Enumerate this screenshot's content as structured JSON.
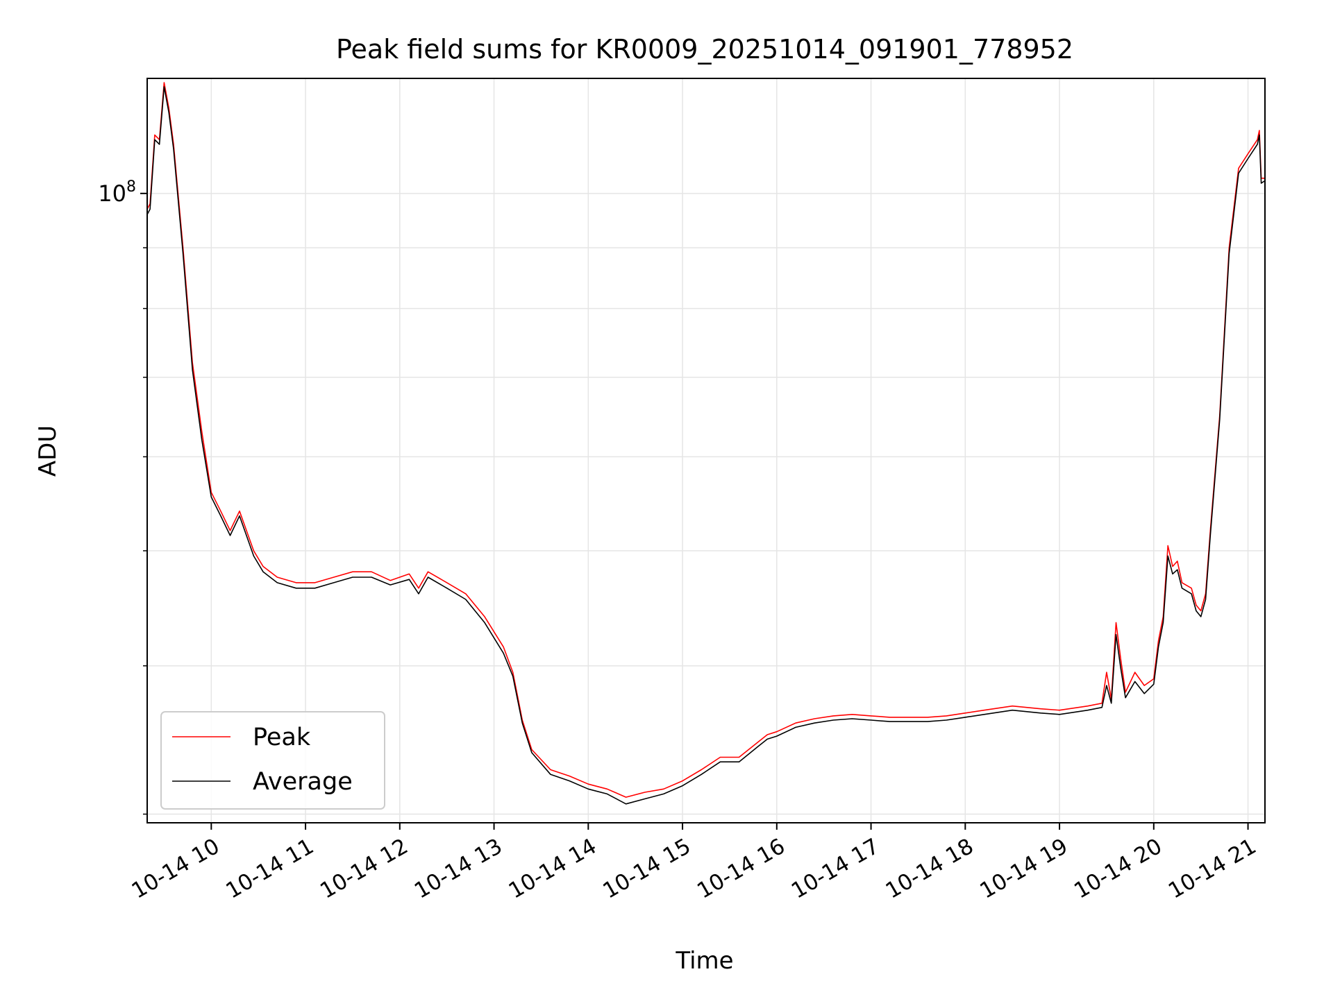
{
  "chart_data": {
    "type": "line",
    "title": "Peak field sums for KR0009_20251014_091901_778952",
    "xlabel": "Time",
    "ylabel": "ADU",
    "x_unit": "hours since 2025-10-14 00:00",
    "xlim": [
      9.32,
      21.18
    ],
    "ylim_log": [
      29500000,
      125000000
    ],
    "y_scale": "log",
    "grid": true,
    "legend_position": "lower-left",
    "x_ticks": [
      {
        "value": 10,
        "label": "10-14 10"
      },
      {
        "value": 11,
        "label": "10-14 11"
      },
      {
        "value": 12,
        "label": "10-14 12"
      },
      {
        "value": 13,
        "label": "10-14 13"
      },
      {
        "value": 14,
        "label": "10-14 14"
      },
      {
        "value": 15,
        "label": "10-14 15"
      },
      {
        "value": 16,
        "label": "10-14 16"
      },
      {
        "value": 17,
        "label": "10-14 17"
      },
      {
        "value": 18,
        "label": "10-14 18"
      },
      {
        "value": 19,
        "label": "10-14 19"
      },
      {
        "value": 20,
        "label": "10-14 20"
      },
      {
        "value": 21,
        "label": "10-14 21"
      }
    ],
    "y_major_ticks": [
      {
        "value": 100000000,
        "base": "10",
        "exp": "8"
      }
    ],
    "y_minor_ticks": [
      30000000,
      40000000,
      50000000,
      60000000,
      70000000,
      80000000,
      90000000
    ],
    "series": [
      {
        "name": "Peak",
        "color": "#ff0000",
        "x": [
          9.32,
          9.35,
          9.4,
          9.45,
          9.5,
          9.55,
          9.6,
          9.7,
          9.8,
          9.9,
          10.0,
          10.1,
          10.2,
          10.3,
          10.45,
          10.55,
          10.7,
          10.9,
          11.1,
          11.3,
          11.5,
          11.7,
          11.9,
          12.1,
          12.2,
          12.3,
          12.5,
          12.7,
          12.9,
          13.1,
          13.2,
          13.3,
          13.4,
          13.6,
          13.8,
          14.0,
          14.2,
          14.4,
          14.6,
          14.8,
          15.0,
          15.2,
          15.4,
          15.6,
          15.8,
          15.9,
          16.0,
          16.2,
          16.4,
          16.6,
          16.8,
          17.0,
          17.2,
          17.4,
          17.6,
          17.8,
          18.0,
          18.2,
          18.5,
          18.8,
          19.0,
          19.3,
          19.45,
          19.5,
          19.55,
          19.6,
          19.65,
          19.7,
          19.8,
          19.9,
          20.0,
          20.05,
          20.1,
          20.15,
          20.2,
          20.25,
          20.3,
          20.4,
          20.45,
          20.5,
          20.55,
          20.6,
          20.7,
          20.8,
          20.9,
          21.0,
          21.1,
          21.12,
          21.14,
          21.18
        ],
        "y": [
          97000000,
          98000000,
          112000000,
          111000000,
          124000000,
          118000000,
          110000000,
          90000000,
          72000000,
          63000000,
          56000000,
          54000000,
          52000000,
          54000000,
          50000000,
          48500000,
          47500000,
          47000000,
          47000000,
          47500000,
          48000000,
          48000000,
          47200000,
          47800000,
          46500000,
          48000000,
          47000000,
          46000000,
          44000000,
          41500000,
          39500000,
          36000000,
          34000000,
          32700000,
          32300000,
          31800000,
          31500000,
          31000000,
          31300000,
          31500000,
          32000000,
          32700000,
          33500000,
          33500000,
          34500000,
          35000000,
          35200000,
          35800000,
          36100000,
          36300000,
          36400000,
          36300000,
          36200000,
          36200000,
          36200000,
          36300000,
          36500000,
          36700000,
          37000000,
          36800000,
          36700000,
          37000000,
          37200000,
          39500000,
          37500000,
          43500000,
          40500000,
          38000000,
          39500000,
          38500000,
          39000000,
          42000000,
          44000000,
          50500000,
          48500000,
          49000000,
          47000000,
          46500000,
          45000000,
          44500000,
          46000000,
          52000000,
          65000000,
          90000000,
          105000000,
          108000000,
          111000000,
          113000000,
          103000000,
          103000000
        ]
      },
      {
        "name": "Average",
        "color": "#000000",
        "x": [
          9.32,
          9.35,
          9.4,
          9.45,
          9.5,
          9.55,
          9.6,
          9.7,
          9.8,
          9.9,
          10.0,
          10.1,
          10.2,
          10.3,
          10.45,
          10.55,
          10.7,
          10.9,
          11.1,
          11.3,
          11.5,
          11.7,
          11.9,
          12.1,
          12.2,
          12.3,
          12.5,
          12.7,
          12.9,
          13.1,
          13.2,
          13.3,
          13.4,
          13.6,
          13.8,
          14.0,
          14.2,
          14.4,
          14.6,
          14.8,
          15.0,
          15.2,
          15.4,
          15.6,
          15.8,
          15.9,
          16.0,
          16.2,
          16.4,
          16.6,
          16.8,
          17.0,
          17.2,
          17.4,
          17.6,
          17.8,
          18.0,
          18.2,
          18.5,
          18.8,
          19.0,
          19.3,
          19.45,
          19.5,
          19.55,
          19.6,
          19.65,
          19.7,
          19.8,
          19.9,
          20.0,
          20.05,
          20.1,
          20.15,
          20.2,
          20.25,
          20.3,
          20.4,
          20.45,
          20.5,
          20.55,
          20.6,
          20.7,
          20.8,
          20.9,
          21.0,
          21.1,
          21.12,
          21.14,
          21.18
        ],
        "y": [
          96000000,
          97000000,
          111000000,
          110000000,
          123000000,
          117000000,
          109000000,
          89000000,
          71000000,
          62000000,
          55500000,
          53500000,
          51500000,
          53500000,
          49500000,
          48000000,
          47000000,
          46500000,
          46500000,
          47000000,
          47500000,
          47500000,
          46800000,
          47300000,
          46000000,
          47500000,
          46500000,
          45500000,
          43500000,
          41000000,
          39200000,
          35800000,
          33800000,
          32400000,
          32000000,
          31500000,
          31200000,
          30600000,
          30900000,
          31200000,
          31700000,
          32400000,
          33200000,
          33200000,
          34200000,
          34700000,
          34900000,
          35500000,
          35800000,
          36000000,
          36100000,
          36000000,
          35900000,
          35900000,
          35900000,
          36000000,
          36200000,
          36400000,
          36700000,
          36500000,
          36400000,
          36700000,
          36900000,
          38500000,
          37200000,
          42500000,
          39800000,
          37600000,
          38800000,
          37900000,
          38600000,
          41500000,
          43500000,
          49500000,
          47800000,
          48200000,
          46500000,
          46000000,
          44500000,
          44000000,
          45500000,
          51500000,
          64500000,
          89000000,
          104000000,
          107000000,
          110000000,
          112000000,
          102000000,
          102500000
        ]
      }
    ],
    "legend": [
      {
        "label": "Peak",
        "color": "#ff0000"
      },
      {
        "label": "Average",
        "color": "#000000"
      }
    ]
  }
}
